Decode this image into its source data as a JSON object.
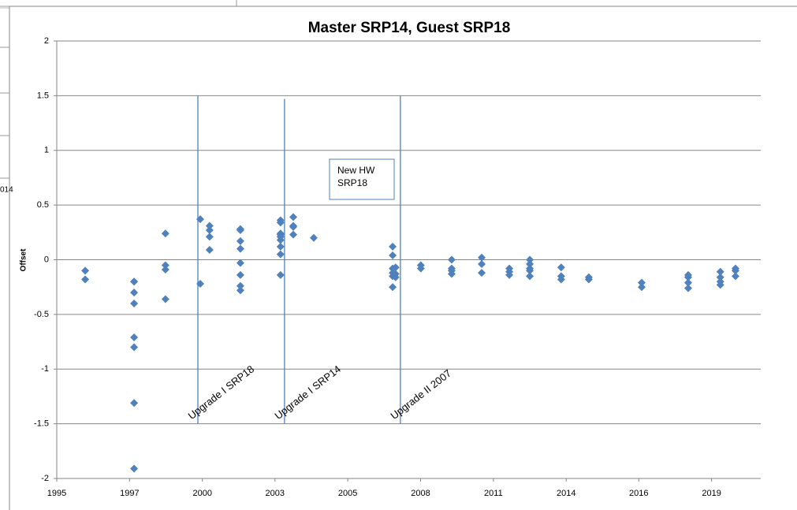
{
  "background_text": "014",
  "chart_data": {
    "type": "scatter",
    "title": "Master SRP14, Guest SRP18",
    "y_label": "Offset",
    "xlim": [
      1995,
      2021.49
    ],
    "xticks": [
      {
        "value": 1995.0,
        "label": "1995"
      },
      {
        "value": 1997.74,
        "label": "1997"
      },
      {
        "value": 2000.48,
        "label": "2000"
      },
      {
        "value": 2003.21,
        "label": "2003"
      },
      {
        "value": 2005.95,
        "label": "2005"
      },
      {
        "value": 2008.69,
        "label": "2008"
      },
      {
        "value": 2011.43,
        "label": "2011"
      },
      {
        "value": 2014.17,
        "label": "2014"
      },
      {
        "value": 2016.9,
        "label": "2016"
      },
      {
        "value": 2019.64,
        "label": "2019"
      }
    ],
    "ylim": [
      -2,
      2
    ],
    "yticks": [
      {
        "value": -2,
        "label": "-2"
      },
      -1.5,
      -1,
      -0.5,
      0,
      0.5,
      1,
      1.5,
      2
    ],
    "grid": true,
    "series": [
      {
        "color": "#4f81bd",
        "x": [
          1996.07,
          1996.07,
          1997.91,
          1997.91,
          1997.91,
          1997.91,
          1997.91,
          1997.91,
          1997.91,
          1997.91,
          1999.09,
          1999.09,
          1999.09,
          1999.09,
          2000.4,
          2000.4,
          2000.75,
          2000.75,
          2000.75,
          2000.75,
          2001.91,
          2001.91,
          2001.91,
          2001.91,
          2001.91,
          2001.91,
          2001.91,
          2001.91,
          2003.42,
          2003.42,
          2003.42,
          2003.42,
          2003.42,
          2003.42,
          2003.42,
          2003.42,
          2003.42,
          2003.9,
          2003.9,
          2003.9,
          2003.9,
          2004.67,
          2007.64,
          2007.64,
          2007.64,
          2007.64,
          2007.64,
          2007.64,
          2007.75,
          2007.75,
          2007.75,
          2008.7,
          2008.7,
          2009.86,
          2009.86,
          2009.86,
          2009.86,
          2010.99,
          2010.99,
          2010.99,
          2012.03,
          2012.03,
          2012.03,
          2012.8,
          2012.8,
          2012.8,
          2012.8,
          2012.8,
          2013.98,
          2013.98,
          2013.98,
          2015.02,
          2015.02,
          2017.01,
          2017.01,
          2018.76,
          2018.76,
          2018.76,
          2018.76,
          2019.97,
          2019.97,
          2019.97,
          2019.97,
          2020.54,
          2020.54,
          2020.54
        ],
        "values": [
          -0.1,
          -0.18,
          -0.2,
          -0.2,
          -0.3,
          -0.4,
          -0.71,
          -0.8,
          -1.31,
          -1.91,
          0.24,
          -0.05,
          -0.09,
          -0.36,
          0.37,
          -0.22,
          0.31,
          0.27,
          0.21,
          0.09,
          0.28,
          0.27,
          0.17,
          0.1,
          -0.03,
          -0.14,
          -0.24,
          -0.28,
          0.36,
          0.34,
          0.24,
          0.23,
          0.21,
          0.18,
          0.12,
          0.05,
          -0.14,
          0.39,
          0.31,
          0.3,
          0.23,
          0.2,
          0.12,
          0.04,
          -0.08,
          -0.12,
          -0.15,
          -0.25,
          -0.07,
          -0.13,
          -0.16,
          -0.05,
          -0.08,
          0.0,
          -0.08,
          -0.1,
          -0.13,
          0.02,
          -0.04,
          -0.12,
          -0.08,
          -0.11,
          -0.14,
          0.0,
          -0.04,
          -0.08,
          -0.1,
          -0.15,
          -0.07,
          -0.15,
          -0.18,
          -0.16,
          -0.18,
          -0.21,
          -0.25,
          -0.14,
          -0.16,
          -0.21,
          -0.26,
          -0.11,
          -0.16,
          -0.2,
          -0.23,
          -0.08,
          -0.1,
          -0.15
        ]
      }
    ],
    "markers": [
      {
        "x": 2000.31,
        "y": [
          1.5,
          -1.5
        ],
        "label": "Upgrade I SRP18"
      },
      {
        "x": 2003.57,
        "y": [
          1.47,
          -1.5
        ],
        "label": "Upgrade I SRP14"
      },
      {
        "x": 2007.93,
        "y": [
          1.5,
          -1.5
        ],
        "label": "Upgrade II 2007"
      }
    ],
    "annotation": [
      "New HW",
      "SRP18"
    ]
  }
}
